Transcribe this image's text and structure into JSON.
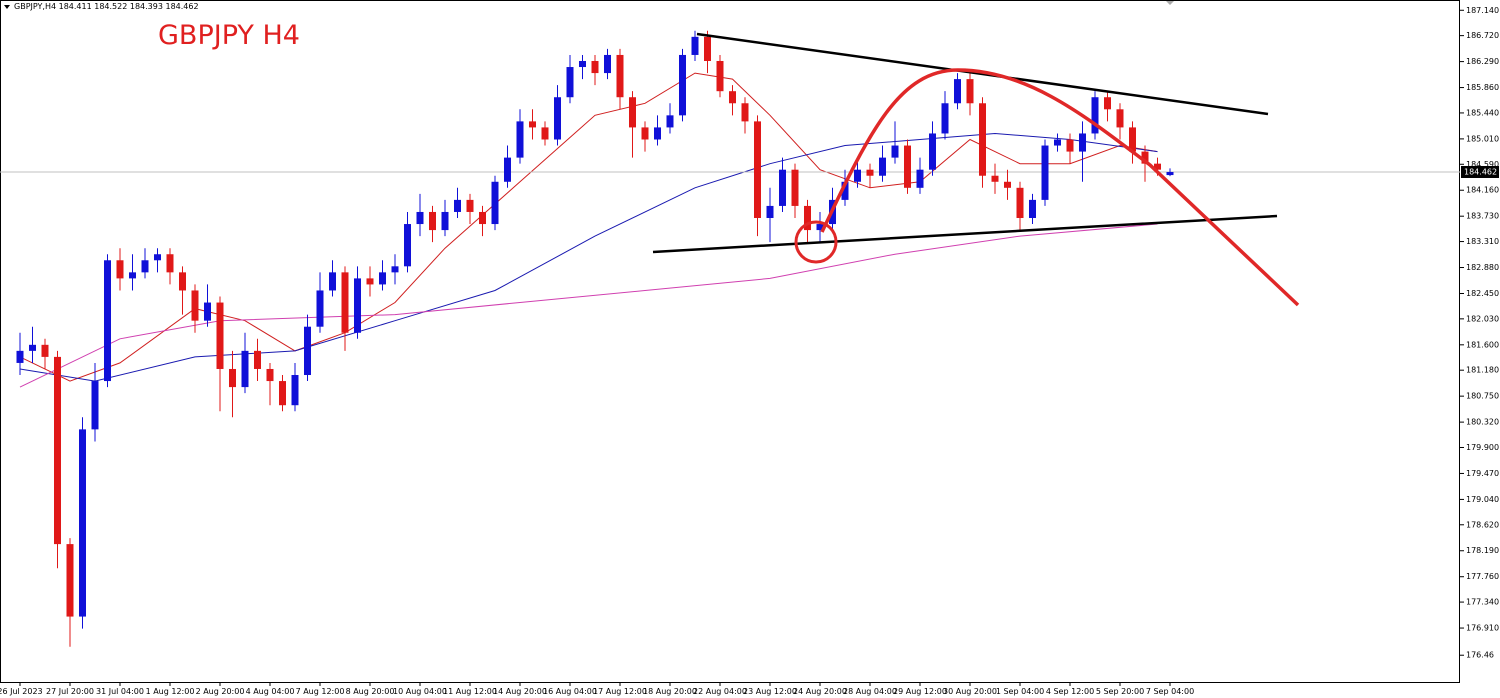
{
  "chart_data": {
    "type": "candlestick",
    "header": "GBPJPY,H4 184.411 184.522 184.393 184.462",
    "title": "GBPJPY H4",
    "bull_color": "#1010d8",
    "bear_color": "#e01818",
    "grid": false,
    "categories": [
      "26 Jul 2023",
      null,
      null,
      null,
      "27 Jul 20:00",
      null,
      null,
      null,
      "31 Jul 04:00",
      null,
      null,
      null,
      "1 Aug 12:00",
      null,
      null,
      null,
      "2 Aug 20:00",
      null,
      null,
      null,
      "4 Aug 04:00",
      null,
      null,
      null,
      "7 Aug 12:00",
      null,
      null,
      null,
      "8 Aug 20:00",
      null,
      null,
      null,
      "10 Aug 04:00",
      null,
      null,
      null,
      "11 Aug 12:00",
      null,
      null,
      null,
      "14 Aug 20:00",
      null,
      null,
      null,
      "16 Aug 04:00",
      null,
      null,
      null,
      "17 Aug 12:00",
      null,
      null,
      null,
      "18 Aug 20:00",
      null,
      null,
      null,
      "22 Aug 04:00",
      null,
      null,
      null,
      "23 Aug 12:00",
      null,
      null,
      null,
      "24 Aug 20:00",
      null,
      null,
      null,
      "28 Aug 04:00",
      null,
      null,
      null,
      "29 Aug 12:00",
      null,
      null,
      null,
      "30 Aug 20:00",
      null,
      null,
      null,
      "1 Sep 04:00",
      null,
      null,
      null,
      "4 Sep 12:00",
      null,
      null,
      null,
      "5 Sep 20:00",
      null,
      null,
      null,
      "7 Sep 04:00"
    ],
    "ohlc": [
      [
        181.3,
        181.8,
        181.1,
        181.5
      ],
      [
        181.5,
        181.9,
        181.3,
        181.6
      ],
      [
        181.6,
        181.7,
        181.2,
        181.4
      ],
      [
        181.4,
        181.5,
        177.9,
        178.3
      ],
      [
        178.3,
        178.4,
        176.6,
        177.1
      ],
      [
        177.1,
        180.4,
        176.9,
        180.2
      ],
      [
        180.2,
        181.3,
        180.0,
        181.0
      ],
      [
        181.0,
        183.1,
        180.9,
        183.0
      ],
      [
        183.0,
        183.2,
        182.5,
        182.7
      ],
      [
        182.7,
        183.1,
        182.5,
        182.8
      ],
      [
        182.8,
        183.2,
        182.7,
        183.0
      ],
      [
        183.0,
        183.2,
        182.8,
        183.1
      ],
      [
        183.1,
        183.2,
        182.6,
        182.8
      ],
      [
        182.8,
        182.9,
        182.1,
        182.5
      ],
      [
        182.5,
        182.6,
        181.8,
        182.0
      ],
      [
        182.0,
        182.6,
        181.9,
        182.3
      ],
      [
        182.3,
        182.4,
        180.5,
        181.2
      ],
      [
        181.2,
        181.5,
        180.4,
        180.9
      ],
      [
        180.9,
        181.8,
        180.8,
        181.5
      ],
      [
        181.5,
        181.7,
        181.0,
        181.2
      ],
      [
        181.2,
        181.3,
        180.6,
        181.0
      ],
      [
        181.0,
        181.1,
        180.5,
        180.6
      ],
      [
        180.6,
        181.3,
        180.5,
        181.1
      ],
      [
        181.1,
        182.1,
        181.0,
        181.9
      ],
      [
        181.9,
        182.8,
        181.8,
        182.5
      ],
      [
        182.5,
        183.0,
        182.4,
        182.8
      ],
      [
        182.8,
        182.9,
        181.5,
        181.8
      ],
      [
        181.8,
        182.9,
        181.7,
        182.7
      ],
      [
        182.7,
        182.9,
        182.4,
        182.6
      ],
      [
        182.6,
        183.0,
        182.5,
        182.8
      ],
      [
        182.8,
        183.1,
        182.6,
        182.9
      ],
      [
        182.9,
        183.8,
        182.8,
        183.6
      ],
      [
        183.6,
        184.1,
        183.4,
        183.8
      ],
      [
        183.8,
        183.9,
        183.3,
        183.5
      ],
      [
        183.5,
        184.0,
        183.4,
        183.8
      ],
      [
        183.8,
        184.2,
        183.7,
        184.0
      ],
      [
        184.0,
        184.1,
        183.6,
        183.8
      ],
      [
        183.8,
        183.9,
        183.4,
        183.6
      ],
      [
        183.6,
        184.4,
        183.5,
        184.3
      ],
      [
        184.3,
        184.9,
        184.2,
        184.7
      ],
      [
        184.7,
        185.5,
        184.6,
        185.3
      ],
      [
        185.3,
        185.5,
        185.0,
        185.2
      ],
      [
        185.2,
        185.3,
        184.9,
        185.0
      ],
      [
        185.0,
        185.9,
        184.9,
        185.7
      ],
      [
        185.7,
        186.4,
        185.6,
        186.2
      ],
      [
        186.2,
        186.4,
        186.0,
        186.3
      ],
      [
        186.3,
        186.4,
        185.9,
        186.1
      ],
      [
        186.1,
        186.5,
        186.0,
        186.4
      ],
      [
        186.4,
        186.5,
        185.5,
        185.7
      ],
      [
        185.7,
        185.8,
        184.7,
        185.2
      ],
      [
        185.2,
        185.3,
        184.8,
        185.0
      ],
      [
        185.0,
        185.4,
        184.9,
        185.2
      ],
      [
        185.2,
        185.6,
        185.1,
        185.4
      ],
      [
        185.4,
        186.5,
        185.3,
        186.4
      ],
      [
        186.4,
        186.8,
        186.3,
        186.7
      ],
      [
        186.7,
        186.8,
        186.1,
        186.3
      ],
      [
        186.3,
        186.4,
        185.7,
        185.8
      ],
      [
        185.8,
        185.9,
        185.4,
        185.6
      ],
      [
        185.6,
        185.7,
        185.1,
        185.3
      ],
      [
        185.3,
        185.4,
        183.4,
        183.7
      ],
      [
        183.7,
        184.2,
        183.3,
        183.9
      ],
      [
        183.9,
        184.7,
        183.8,
        184.5
      ],
      [
        184.5,
        184.6,
        183.7,
        183.9
      ],
      [
        183.9,
        184.0,
        183.3,
        183.5
      ],
      [
        183.5,
        183.8,
        183.3,
        183.6
      ],
      [
        183.6,
        184.2,
        183.5,
        184.0
      ],
      [
        184.0,
        184.5,
        183.9,
        184.3
      ],
      [
        184.3,
        184.7,
        184.2,
        184.5
      ],
      [
        184.5,
        184.6,
        184.2,
        184.4
      ],
      [
        184.4,
        184.9,
        184.3,
        184.7
      ],
      [
        184.7,
        185.3,
        184.6,
        184.9
      ],
      [
        184.9,
        185.0,
        184.1,
        184.2
      ],
      [
        184.2,
        184.7,
        184.1,
        184.5
      ],
      [
        184.5,
        185.3,
        184.4,
        185.1
      ],
      [
        185.1,
        185.8,
        185.0,
        185.6
      ],
      [
        185.6,
        186.1,
        185.5,
        186.0
      ],
      [
        186.0,
        186.1,
        185.4,
        185.6
      ],
      [
        185.6,
        185.7,
        184.2,
        184.4
      ],
      [
        184.4,
        184.6,
        184.1,
        184.3
      ],
      [
        184.3,
        184.5,
        184.0,
        184.2
      ],
      [
        184.2,
        184.3,
        183.5,
        183.7
      ],
      [
        183.7,
        184.1,
        183.6,
        184.0
      ],
      [
        184.0,
        185.0,
        183.9,
        184.9
      ],
      [
        184.9,
        185.1,
        184.8,
        185.0
      ],
      [
        185.0,
        185.1,
        184.6,
        184.8
      ],
      [
        184.8,
        185.3,
        184.3,
        185.1
      ],
      [
        185.1,
        185.8,
        185.0,
        185.7
      ],
      [
        185.7,
        185.8,
        185.3,
        185.5
      ],
      [
        185.5,
        185.6,
        185.0,
        185.2
      ],
      [
        185.2,
        185.3,
        184.6,
        184.8
      ],
      [
        184.8,
        184.9,
        184.3,
        184.6
      ],
      [
        184.6,
        184.7,
        184.4,
        184.5
      ],
      [
        184.411,
        184.522,
        184.393,
        184.462
      ]
    ],
    "moving_averages": [
      {
        "color": "#d02020",
        "x": [
          0,
          4,
          8,
          14,
          18,
          22,
          26,
          30,
          34,
          40,
          46,
          50,
          54,
          57,
          60,
          64,
          68,
          72,
          76,
          80,
          84,
          88,
          91
        ],
        "values": [
          181.4,
          181.0,
          181.3,
          182.2,
          182.0,
          181.5,
          181.8,
          182.3,
          183.2,
          184.3,
          185.4,
          185.6,
          186.1,
          186.0,
          185.4,
          184.5,
          184.2,
          184.3,
          185.0,
          184.6,
          184.6,
          184.9,
          184.8
        ]
      },
      {
        "color": "#1a1ab0",
        "x": [
          0,
          6,
          14,
          22,
          30,
          38,
          46,
          54,
          60,
          66,
          72,
          78,
          84,
          91
        ],
        "values": [
          181.2,
          181.0,
          181.4,
          181.5,
          182.0,
          182.5,
          183.4,
          184.2,
          184.6,
          184.9,
          185.0,
          185.1,
          185.0,
          184.8
        ]
      },
      {
        "color": "#d040b0",
        "x": [
          0,
          8,
          16,
          30,
          40,
          50,
          60,
          70,
          80,
          91
        ],
        "values": [
          180.9,
          181.7,
          182.0,
          182.1,
          182.3,
          182.5,
          182.7,
          183.1,
          183.4,
          183.6
        ]
      }
    ],
    "ylim": [
      176.0,
      187.31
    ],
    "yticks": [
      {
        "value": 187.14,
        "label": "187.140"
      },
      {
        "value": 186.72,
        "label": "186.720"
      },
      {
        "value": 186.29,
        "label": "186.290"
      },
      {
        "value": 185.86,
        "label": "185.860"
      },
      {
        "value": 185.44,
        "label": "185.440"
      },
      {
        "value": 185.01,
        "label": "185.010"
      },
      {
        "value": 184.59,
        "label": "184.590"
      },
      {
        "value": 184.16,
        "label": "184.160"
      },
      {
        "value": 183.73,
        "label": "183.730"
      },
      {
        "value": 183.31,
        "label": "183.310"
      },
      {
        "value": 182.88,
        "label": "182.880"
      },
      {
        "value": 182.45,
        "label": "182.450"
      },
      {
        "value": 182.03,
        "label": "182.030"
      },
      {
        "value": 181.6,
        "label": "181.600"
      },
      {
        "value": 181.18,
        "label": "181.180"
      },
      {
        "value": 180.75,
        "label": "180.750"
      },
      {
        "value": 180.32,
        "label": "180.320"
      },
      {
        "value": 179.9,
        "label": "179.900"
      },
      {
        "value": 179.47,
        "label": "179.470"
      },
      {
        "value": 179.04,
        "label": "179.040"
      },
      {
        "value": 178.62,
        "label": "178.620"
      },
      {
        "value": 178.19,
        "label": "178.190"
      },
      {
        "value": 177.76,
        "label": "177.760"
      },
      {
        "value": 177.34,
        "label": "177.340"
      },
      {
        "value": 176.91,
        "label": "176.910"
      },
      176.46
    ]
  }
}
